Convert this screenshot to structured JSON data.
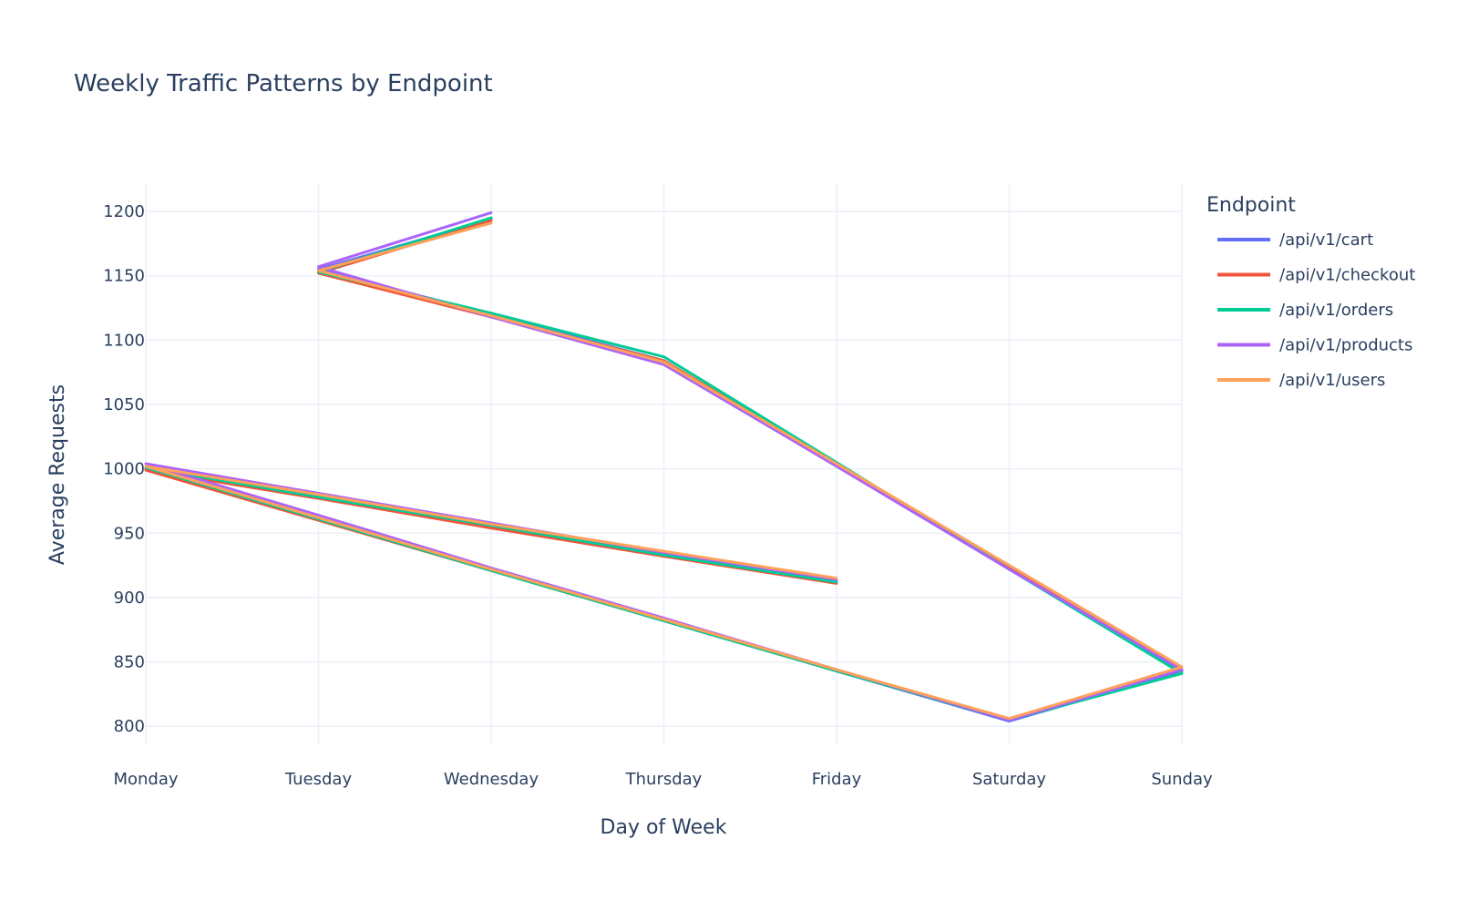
{
  "chart_data": {
    "type": "line",
    "title": "Weekly Traffic Patterns by Endpoint",
    "xlabel": "Day of Week",
    "ylabel": "Average Requests",
    "categories": [
      "Monday",
      "Tuesday",
      "Wednesday",
      "Thursday",
      "Friday",
      "Saturday",
      "Sunday"
    ],
    "ylim": [
      786,
      1222
    ],
    "yticks": [
      800,
      850,
      900,
      950,
      1000,
      1050,
      1100,
      1150,
      1200
    ],
    "grid": true,
    "legend": {
      "title": "Endpoint",
      "position": "top-right"
    },
    "series": [
      {
        "name": "/api/v1/cart",
        "color": "#636efa",
        "points": [
          {
            "x": "Friday",
            "y": 913
          },
          {
            "x": "Thursday",
            "y": 934
          },
          {
            "x": "Wednesday",
            "y": 955
          },
          {
            "x": "Tuesday",
            "y": 978
          },
          {
            "x": "Monday",
            "y": 1000
          },
          {
            "x": "Tuesday",
            "y": 961
          },
          {
            "x": "Wednesday",
            "y": 921
          },
          {
            "x": "Thursday",
            "y": 882
          },
          {
            "x": "Friday",
            "y": 843
          },
          {
            "x": "Saturday",
            "y": 804
          },
          {
            "x": "Sunday",
            "y": 843
          },
          {
            "x": "Saturday",
            "y": 923
          },
          {
            "x": "Friday",
            "y": 1003
          },
          {
            "x": "Thursday",
            "y": 1084
          },
          {
            "x": "Wednesday",
            "y": 1120
          },
          {
            "x": "Tuesday",
            "y": 1155
          },
          {
            "x": "Wednesday",
            "y": 1194
          }
        ]
      },
      {
        "name": "/api/v1/checkout",
        "color": "#ef553b",
        "points": [
          {
            "x": "Friday",
            "y": 911
          },
          {
            "x": "Thursday",
            "y": 932
          },
          {
            "x": "Wednesday",
            "y": 954
          },
          {
            "x": "Tuesday",
            "y": 977
          },
          {
            "x": "Monday",
            "y": 999
          },
          {
            "x": "Tuesday",
            "y": 960
          },
          {
            "x": "Wednesday",
            "y": 921
          },
          {
            "x": "Thursday",
            "y": 882
          },
          {
            "x": "Friday",
            "y": 843
          },
          {
            "x": "Saturday",
            "y": 805
          },
          {
            "x": "Sunday",
            "y": 844
          },
          {
            "x": "Saturday",
            "y": 924
          },
          {
            "x": "Friday",
            "y": 1004
          },
          {
            "x": "Thursday",
            "y": 1084
          },
          {
            "x": "Wednesday",
            "y": 1118
          },
          {
            "x": "Tuesday",
            "y": 1152
          },
          {
            "x": "Wednesday",
            "y": 1193
          }
        ]
      },
      {
        "name": "/api/v1/orders",
        "color": "#00cc96",
        "points": [
          {
            "x": "Friday",
            "y": 912
          },
          {
            "x": "Thursday",
            "y": 933
          },
          {
            "x": "Wednesday",
            "y": 956
          },
          {
            "x": "Tuesday",
            "y": 978
          },
          {
            "x": "Monday",
            "y": 1001
          },
          {
            "x": "Tuesday",
            "y": 961
          },
          {
            "x": "Wednesday",
            "y": 921
          },
          {
            "x": "Thursday",
            "y": 882
          },
          {
            "x": "Friday",
            "y": 843
          },
          {
            "x": "Saturday",
            "y": 805
          },
          {
            "x": "Sunday",
            "y": 841
          },
          {
            "x": "Saturday",
            "y": 922
          },
          {
            "x": "Friday",
            "y": 1005
          },
          {
            "x": "Thursday",
            "y": 1087
          },
          {
            "x": "Wednesday",
            "y": 1121
          },
          {
            "x": "Tuesday",
            "y": 1153
          },
          {
            "x": "Wednesday",
            "y": 1195
          }
        ]
      },
      {
        "name": "/api/v1/products",
        "color": "#ab63fa",
        "points": [
          {
            "x": "Friday",
            "y": 914
          },
          {
            "x": "Thursday",
            "y": 935
          },
          {
            "x": "Wednesday",
            "y": 958
          },
          {
            "x": "Tuesday",
            "y": 981
          },
          {
            "x": "Monday",
            "y": 1004
          },
          {
            "x": "Tuesday",
            "y": 964
          },
          {
            "x": "Wednesday",
            "y": 923
          },
          {
            "x": "Thursday",
            "y": 884
          },
          {
            "x": "Friday",
            "y": 844
          },
          {
            "x": "Saturday",
            "y": 805
          },
          {
            "x": "Sunday",
            "y": 844
          },
          {
            "x": "Saturday",
            "y": 922
          },
          {
            "x": "Friday",
            "y": 1002
          },
          {
            "x": "Thursday",
            "y": 1081
          },
          {
            "x": "Wednesday",
            "y": 1118
          },
          {
            "x": "Tuesday",
            "y": 1157
          },
          {
            "x": "Wednesday",
            "y": 1199
          }
        ]
      },
      {
        "name": "/api/v1/users",
        "color": "#ffa15a",
        "points": [
          {
            "x": "Friday",
            "y": 915
          },
          {
            "x": "Thursday",
            "y": 936
          },
          {
            "x": "Wednesday",
            "y": 957
          },
          {
            "x": "Tuesday",
            "y": 980
          },
          {
            "x": "Monday",
            "y": 1002
          },
          {
            "x": "Tuesday",
            "y": 962
          },
          {
            "x": "Wednesday",
            "y": 922
          },
          {
            "x": "Thursday",
            "y": 883
          },
          {
            "x": "Friday",
            "y": 844
          },
          {
            "x": "Saturday",
            "y": 806
          },
          {
            "x": "Sunday",
            "y": 846
          },
          {
            "x": "Saturday",
            "y": 925
          },
          {
            "x": "Friday",
            "y": 1004
          },
          {
            "x": "Thursday",
            "y": 1083
          },
          {
            "x": "Wednesday",
            "y": 1119
          },
          {
            "x": "Tuesday",
            "y": 1154
          },
          {
            "x": "Wednesday",
            "y": 1191
          }
        ]
      }
    ]
  }
}
